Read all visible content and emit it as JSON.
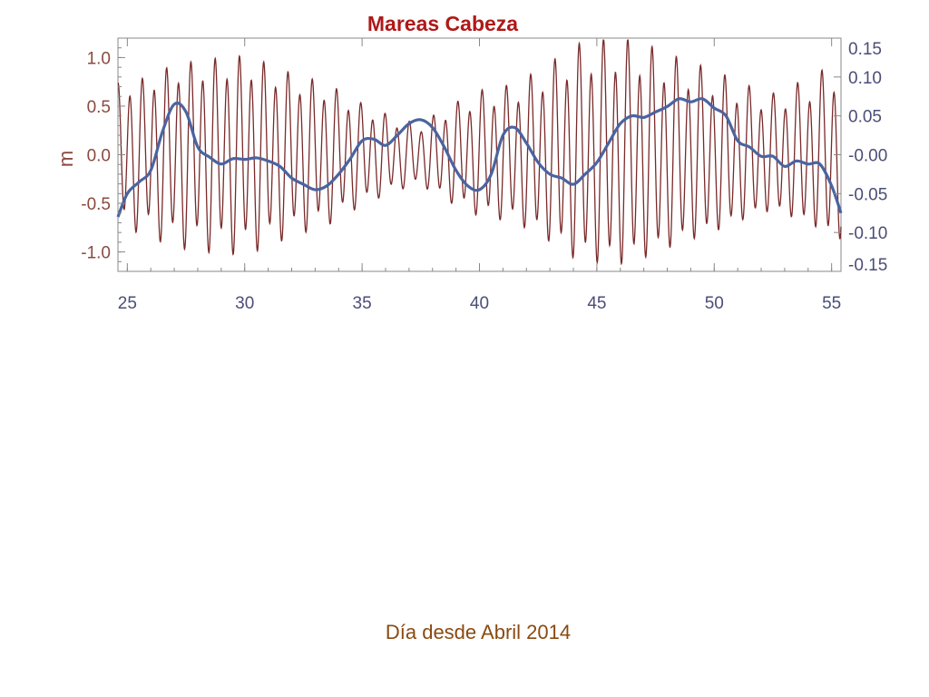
{
  "chart_data": {
    "type": "line",
    "title": "Mareas Cabeza",
    "xlabel": "Día desde Abril 2014",
    "ylabel": "m",
    "ylabel_right": "",
    "xlim": [
      24.6,
      55.4
    ],
    "ylim": [
      -1.2,
      1.2
    ],
    "ylim_right": [
      -0.15,
      0.15
    ],
    "x_ticks": [
      25,
      30,
      35,
      40,
      45,
      50,
      55
    ],
    "x_tick_labels": [
      "25",
      "30",
      "35",
      "40",
      "45",
      "50",
      "55"
    ],
    "y_ticks": [
      1.0,
      0.5,
      0.0,
      -0.5,
      -1.0
    ],
    "y_tick_labels": [
      "1.0",
      "0.5",
      "0.0",
      "-0.5",
      "-1.0"
    ],
    "y_right_ticks": [
      0.15,
      0.1,
      0.05,
      0.0,
      -0.05,
      -0.1,
      -0.15
    ],
    "y_right_tick_labels": [
      "0.15",
      "0.10",
      "0.05",
      "-0.00",
      "-0.05",
      "-0.10",
      "-0.15"
    ],
    "grid": false,
    "colors": {
      "tide": "#7a2a2a",
      "residual": "#4a64a0",
      "title": "#b01818",
      "left_axis": "#8a4a40",
      "right_axis": "#4a4e78",
      "x_axis": "#4a4e78",
      "xlabel": "#8a4a10",
      "frame": "#888888"
    },
    "series": [
      {
        "axis": "left",
        "sampling": "tidal signal: 0.5-day period oscillation, amplitude envelope below",
        "x_start": 24.6,
        "x_end": 55.4,
        "envelope_x": [
          24.6,
          25.5,
          27.0,
          28.5,
          30.0,
          31.0,
          32.0,
          33.5,
          35.0,
          36.5,
          37.5,
          38.5,
          40.0,
          41.5,
          43.0,
          44.0,
          45.0,
          46.0,
          47.0,
          48.5,
          50.0,
          51.5,
          52.5,
          54.0,
          55.4
        ],
        "envelope_amp": [
          0.72,
          0.75,
          0.9,
          0.95,
          0.98,
          0.9,
          0.8,
          0.7,
          0.5,
          0.35,
          0.3,
          0.45,
          0.62,
          0.68,
          0.88,
          1.05,
          1.1,
          1.12,
          1.06,
          0.92,
          0.8,
          0.65,
          0.58,
          0.72,
          0.9
        ]
      },
      {
        "axis": "right",
        "x": [
          24.6,
          25.0,
          25.5,
          26.0,
          26.5,
          27.0,
          27.5,
          28.0,
          28.5,
          29.0,
          29.5,
          30.0,
          30.5,
          31.0,
          31.5,
          32.0,
          32.5,
          33.0,
          33.5,
          34.0,
          34.5,
          35.0,
          35.5,
          36.0,
          36.5,
          37.0,
          37.5,
          38.0,
          38.5,
          39.0,
          39.5,
          40.0,
          40.5,
          41.0,
          41.5,
          42.0,
          42.5,
          43.0,
          43.5,
          44.0,
          44.5,
          45.0,
          45.5,
          46.0,
          46.5,
          47.0,
          47.5,
          48.0,
          48.5,
          49.0,
          49.5,
          50.0,
          50.5,
          51.0,
          51.5,
          52.0,
          52.5,
          53.0,
          53.5,
          54.0,
          54.5,
          55.0,
          55.4
        ],
        "y": [
          -0.08,
          -0.05,
          -0.035,
          -0.02,
          0.03,
          0.065,
          0.055,
          0.01,
          -0.003,
          -0.012,
          -0.005,
          -0.006,
          -0.004,
          -0.008,
          -0.015,
          -0.03,
          -0.038,
          -0.045,
          -0.04,
          -0.025,
          -0.005,
          0.018,
          0.02,
          0.012,
          0.025,
          0.04,
          0.045,
          0.035,
          0.01,
          -0.02,
          -0.04,
          -0.045,
          -0.025,
          0.025,
          0.035,
          0.015,
          -0.01,
          -0.025,
          -0.03,
          -0.038,
          -0.025,
          -0.01,
          0.015,
          0.04,
          0.05,
          0.048,
          0.055,
          0.062,
          0.072,
          0.068,
          0.072,
          0.06,
          0.05,
          0.018,
          0.01,
          -0.002,
          -0.002,
          -0.015,
          -0.008,
          -0.012,
          -0.012,
          -0.04,
          -0.075
        ]
      }
    ]
  }
}
